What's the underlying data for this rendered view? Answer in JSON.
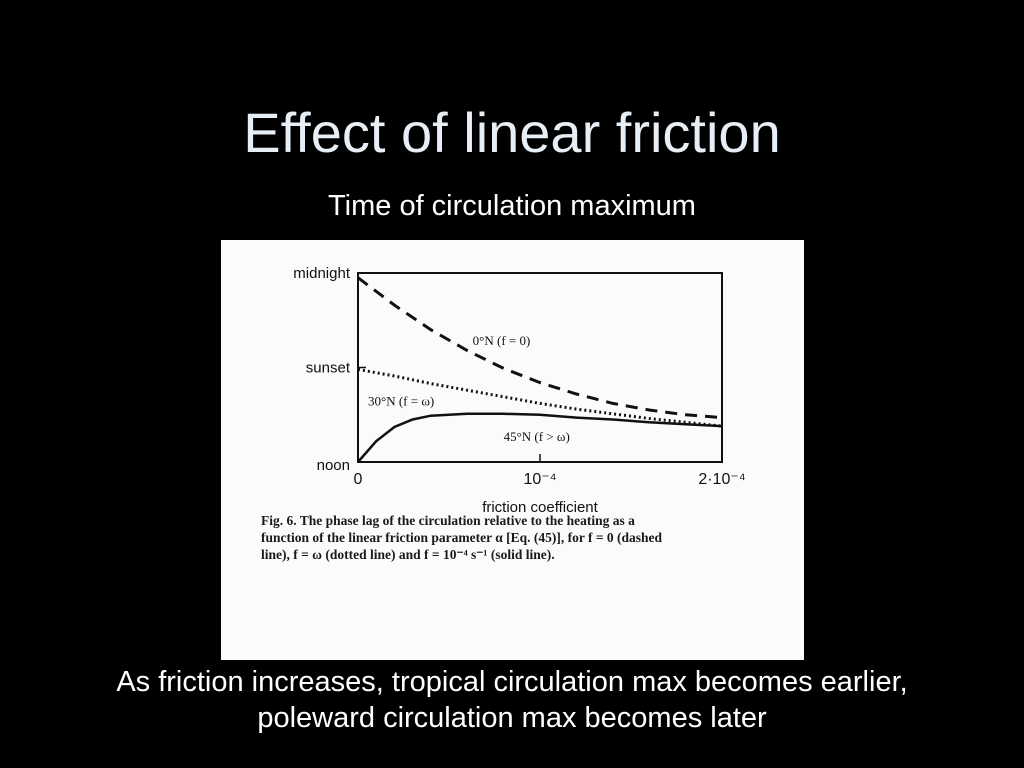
{
  "slide": {
    "title": "Effect of linear friction",
    "subtitle": "Time of circulation maximum",
    "conclusion_line1": "As friction increases, tropical circulation max becomes earlier,",
    "conclusion_line2": "poleward circulation max becomes later"
  },
  "figure": {
    "caption_line1": "Fig. 6. The phase lag of the circulation relative to the heating as a",
    "caption_line2": "function of the linear friction parameter α [Eq. (45)], for f = 0 (dashed",
    "caption_line3": "line), f = ω (dotted line) and f = 10⁻⁴ s⁻¹ (solid line)."
  },
  "chart_data": {
    "type": "line",
    "title": "",
    "xlabel": "friction coefficient",
    "ylabel": "",
    "xlim": [
      0,
      0.0002
    ],
    "ylim": [
      0,
      2
    ],
    "x_ticks": [
      {
        "value": 0,
        "label": "0"
      },
      {
        "value": 0.0001,
        "label": "10⁻⁴"
      },
      {
        "value": 0.0002,
        "label": "2·10⁻⁴"
      }
    ],
    "y_ticks": [
      {
        "value": 0,
        "label": "noon"
      },
      {
        "value": 1,
        "label": "sunset"
      },
      {
        "value": 2,
        "label": "midnight"
      }
    ],
    "grid": false,
    "series": [
      {
        "name": "0°N (f = 0)",
        "style": "dashed",
        "x": [
          0,
          2e-05,
          4e-05,
          6e-05,
          8e-05,
          0.0001,
          0.00012,
          0.00014,
          0.00016,
          0.00018,
          0.0002
        ],
        "y": [
          1.95,
          1.66,
          1.4,
          1.18,
          0.99,
          0.84,
          0.72,
          0.62,
          0.55,
          0.5,
          0.47
        ]
      },
      {
        "name": "30°N (f = ω)",
        "style": "dotted",
        "x": [
          0,
          2e-05,
          4e-05,
          6e-05,
          8e-05,
          0.0001,
          0.00012,
          0.00014,
          0.00016,
          0.00018,
          0.0002
        ],
        "y": [
          0.98,
          0.91,
          0.83,
          0.76,
          0.69,
          0.62,
          0.56,
          0.51,
          0.46,
          0.42,
          0.38
        ]
      },
      {
        "name": "45°N (f > ω)",
        "style": "solid",
        "x": [
          0,
          1e-05,
          2e-05,
          3e-05,
          4e-05,
          6e-05,
          8e-05,
          0.0001,
          0.00012,
          0.00014,
          0.00016,
          0.00018,
          0.0002
        ],
        "y": [
          0,
          0.22,
          0.37,
          0.45,
          0.49,
          0.51,
          0.51,
          0.5,
          0.47,
          0.45,
          0.42,
          0.4,
          0.38
        ]
      }
    ],
    "annotations": [
      {
        "text": "0°N (f = 0)",
        "series": 0
      },
      {
        "text": "30°N (f = ω)",
        "series": 1
      },
      {
        "text": "45°N (f > ω)",
        "series": 2
      }
    ],
    "colors": {
      "line": "#111111",
      "panel": "#fbfbfb"
    }
  }
}
